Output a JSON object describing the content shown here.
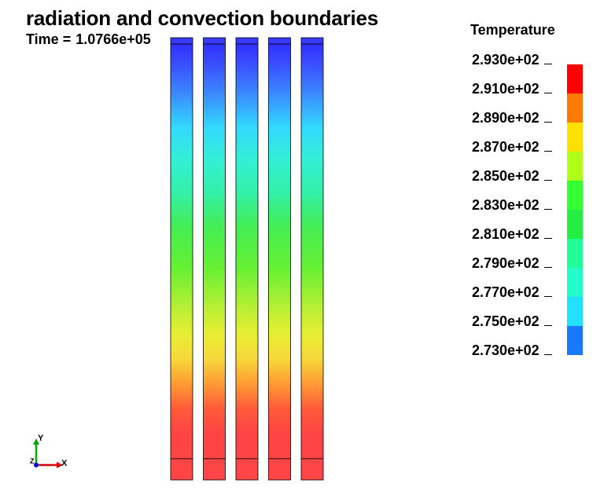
{
  "title": "radiation and convection boundaries",
  "time": {
    "label": "Time =",
    "value": "1.0766e+05"
  },
  "legend": {
    "title": "Temperature",
    "labels": [
      "2.930e+02",
      "2.910e+02",
      "2.890e+02",
      "2.870e+02",
      "2.850e+02",
      "2.830e+02",
      "2.810e+02",
      "2.790e+02",
      "2.770e+02",
      "2.750e+02",
      "2.730e+02"
    ],
    "colors": [
      "#ff0000",
      "#ff7a00",
      "#ffe000",
      "#b0ff1a",
      "#33ff33",
      "#22ee44",
      "#22ff99",
      "#22ffcc",
      "#22e0ff",
      "#1a7aff",
      "#1a10ff"
    ]
  },
  "model": {
    "column_count": 5,
    "gradient": [
      {
        "t": 0.0,
        "color": "#3030ff"
      },
      {
        "t": 0.05,
        "color": "#3a50ff"
      },
      {
        "t": 0.12,
        "color": "#3a8aff"
      },
      {
        "t": 0.2,
        "color": "#33d8ff"
      },
      {
        "t": 0.28,
        "color": "#33f0d6"
      },
      {
        "t": 0.36,
        "color": "#33f0a6"
      },
      {
        "t": 0.44,
        "color": "#44ee55"
      },
      {
        "t": 0.54,
        "color": "#66f033"
      },
      {
        "t": 0.63,
        "color": "#b2ef33"
      },
      {
        "t": 0.7,
        "color": "#e8ee33"
      },
      {
        "t": 0.76,
        "color": "#f7d83a"
      },
      {
        "t": 0.82,
        "color": "#ff9a33"
      },
      {
        "t": 0.88,
        "color": "#ff5a3a"
      },
      {
        "t": 0.94,
        "color": "#ff4444"
      },
      {
        "t": 1.0,
        "color": "#ff4545"
      }
    ],
    "top_cap_color": "#3a3aff",
    "bottom_cap_color": "#ff4545"
  },
  "axes": {
    "y_label": "Y",
    "z_label": "Z",
    "x_label": "X",
    "y_color": "#00aa00",
    "x_color": "#dd0000",
    "z_color": "#0000cc"
  }
}
